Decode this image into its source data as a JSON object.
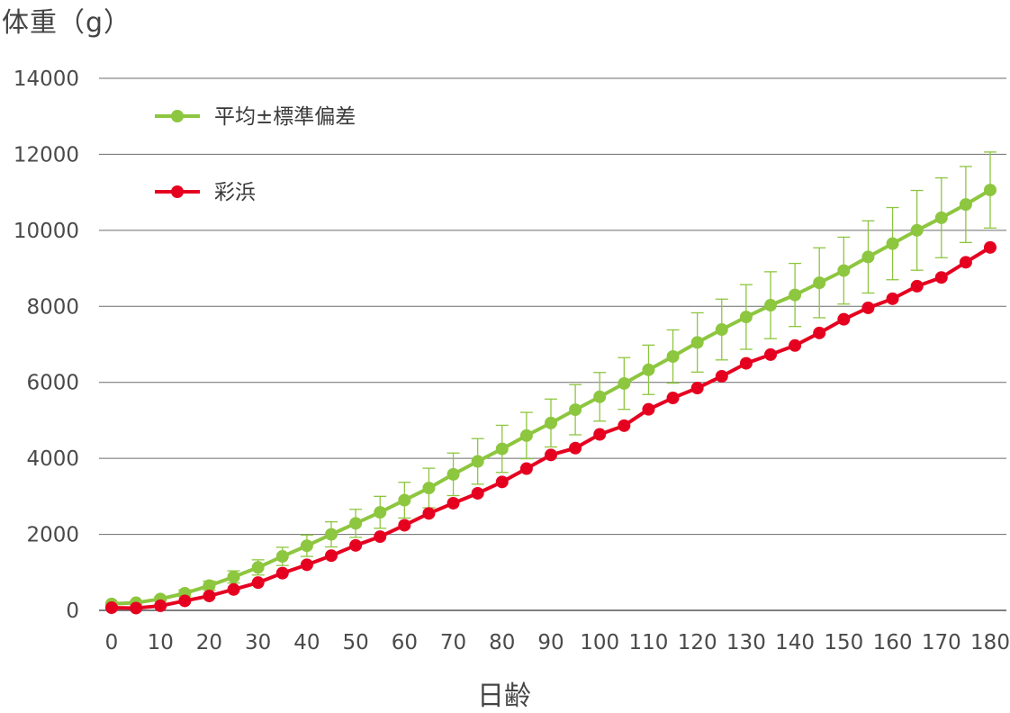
{
  "chart_data": {
    "type": "line",
    "ylabel": "体重（g）",
    "xlabel": "日齢",
    "ylim": [
      0,
      14000
    ],
    "xlim": [
      0,
      180
    ],
    "yticks": [
      "0",
      "2000",
      "4000",
      "6000",
      "8000",
      "10000",
      "12000",
      "14000"
    ],
    "xticks": [
      "0",
      "10",
      "20",
      "30",
      "40",
      "50",
      "60",
      "70",
      "80",
      "90",
      "100",
      "110",
      "120",
      "130",
      "140",
      "150",
      "160",
      "170",
      "180"
    ],
    "grid": "horizontal",
    "legend_position": "top-left",
    "x": [
      0,
      5,
      10,
      15,
      20,
      25,
      30,
      35,
      40,
      45,
      50,
      55,
      60,
      65,
      70,
      75,
      80,
      85,
      90,
      95,
      100,
      105,
      110,
      115,
      120,
      125,
      130,
      135,
      140,
      145,
      150,
      155,
      160,
      165,
      170,
      175,
      180
    ],
    "series": [
      {
        "name": "平均±標準偏差",
        "color": "#8dc63f",
        "values": [
          170,
          200,
          300,
          450,
          650,
          880,
          1130,
          1420,
          1700,
          2000,
          2290,
          2580,
          2900,
          3220,
          3580,
          3920,
          4250,
          4600,
          4930,
          5280,
          5620,
          5970,
          6330,
          6680,
          7050,
          7390,
          7720,
          8030,
          8300,
          8620,
          8940,
          9300,
          9650,
          10000,
          10330,
          10680,
          11060
        ],
        "error": [
          30,
          40,
          60,
          90,
          120,
          160,
          200,
          240,
          280,
          330,
          370,
          420,
          470,
          520,
          560,
          600,
          620,
          610,
          630,
          660,
          640,
          680,
          650,
          700,
          780,
          800,
          850,
          880,
          830,
          920,
          880,
          950,
          950,
          1050,
          1050,
          1000,
          1000
        ]
      },
      {
        "name": "彩浜",
        "color": "#e60020",
        "values": [
          70,
          60,
          120,
          250,
          380,
          550,
          730,
          980,
          1200,
          1440,
          1710,
          1940,
          2240,
          2550,
          2820,
          3080,
          3380,
          3730,
          4090,
          4270,
          4630,
          4860,
          5290,
          5590,
          5850,
          6160,
          6500,
          6730,
          6970,
          7300,
          7660,
          7960,
          8200,
          8530,
          8760,
          9160,
          9550
        ]
      }
    ]
  }
}
